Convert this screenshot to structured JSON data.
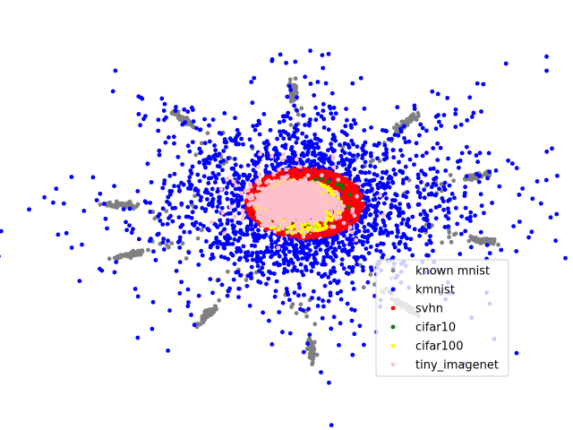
{
  "chart_data": {
    "type": "scatter",
    "title": "",
    "xlabel": "",
    "ylabel": "",
    "axes_visible": false,
    "grid": false,
    "xlim": [
      -1.0,
      1.0
    ],
    "ylim": [
      -1.0,
      1.0
    ],
    "legend_placement": "lower-right",
    "series": [
      {
        "name": "known mnist",
        "color": "#808080",
        "structure": "ten elongated clusters arranged in a ring around the center",
        "clusters": [
          {
            "center": [
              0.0,
              0.76
            ],
            "direction": [
              0.0,
              1.0
            ]
          },
          {
            "center": [
              0.51,
              0.57
            ],
            "direction": [
              0.707,
              0.707
            ]
          },
          {
            "center": [
              0.83,
              0.24
            ],
            "direction": [
              0.97,
              0.25
            ]
          },
          {
            "center": [
              0.86,
              -0.16
            ],
            "direction": [
              0.98,
              -0.2
            ]
          },
          {
            "center": [
              0.5,
              -0.56
            ],
            "direction": [
              0.707,
              -0.707
            ]
          },
          {
            "center": [
              0.08,
              -0.82
            ],
            "direction": [
              0.1,
              -1.0
            ]
          },
          {
            "center": [
              -0.38,
              -0.6
            ],
            "direction": [
              -0.6,
              -0.8
            ]
          },
          {
            "center": [
              -0.73,
              -0.24
            ],
            "direction": [
              -0.95,
              -0.3
            ]
          },
          {
            "center": [
              -0.78,
              0.06
            ],
            "direction": [
              -1.0,
              0.05
            ]
          },
          {
            "center": [
              -0.49,
              0.58
            ],
            "direction": [
              -0.707,
              0.707
            ]
          }
        ]
      },
      {
        "name": "kmnist",
        "color": "#0000ff",
        "structure": "broad star-shaped cloud reaching toward the gray clusters",
        "center": [
          0.05,
          0.07
        ],
        "spread": [
          0.4,
          0.3
        ]
      },
      {
        "name": "svhn",
        "color": "#ff0000",
        "structure": "ring around the center",
        "center": [
          0.05,
          0.07
        ],
        "spread": [
          0.22,
          0.18
        ]
      },
      {
        "name": "cifar10",
        "color": "#008000",
        "structure": "sparse points mixed in the ring",
        "center": [
          0.05,
          0.07
        ],
        "spread": [
          0.2,
          0.16
        ]
      },
      {
        "name": "cifar100",
        "color": "#ffff00",
        "structure": "points along the inner ring",
        "center": [
          0.02,
          0.05
        ],
        "spread": [
          0.18,
          0.15
        ]
      },
      {
        "name": "tiny_imagenet",
        "color": "#ffc0cb",
        "structure": "dense central blob",
        "center": [
          0.0,
          0.08
        ],
        "spread": [
          0.08,
          0.06
        ]
      }
    ]
  }
}
